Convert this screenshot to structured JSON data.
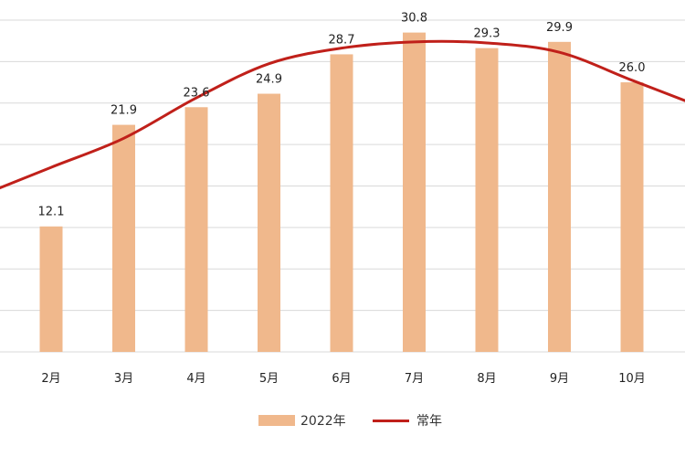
{
  "chart_data": {
    "type": "bar",
    "categories": [
      "2月",
      "3月",
      "4月",
      "5月",
      "6月",
      "7月",
      "8月",
      "9月",
      "10月"
    ],
    "series": [
      {
        "name": "2022年",
        "type": "bar",
        "values": [
          12.1,
          21.9,
          23.6,
          24.9,
          28.7,
          30.8,
          29.3,
          29.9,
          26.0
        ],
        "labels": [
          "12.1",
          "21.9",
          "23.6",
          "24.9",
          "28.7",
          "30.8",
          "29.3",
          "29.9",
          "26.0"
        ],
        "color": "#f0b88c"
      },
      {
        "name": "常年",
        "type": "line",
        "values": [
          17.8,
          20.6,
          24.5,
          27.8,
          29.3,
          29.9,
          29.8,
          28.9,
          26.2
        ],
        "color": "#c0201a"
      }
    ],
    "ylim": [
      0,
      32
    ],
    "grid": true,
    "legend": "bottom"
  }
}
